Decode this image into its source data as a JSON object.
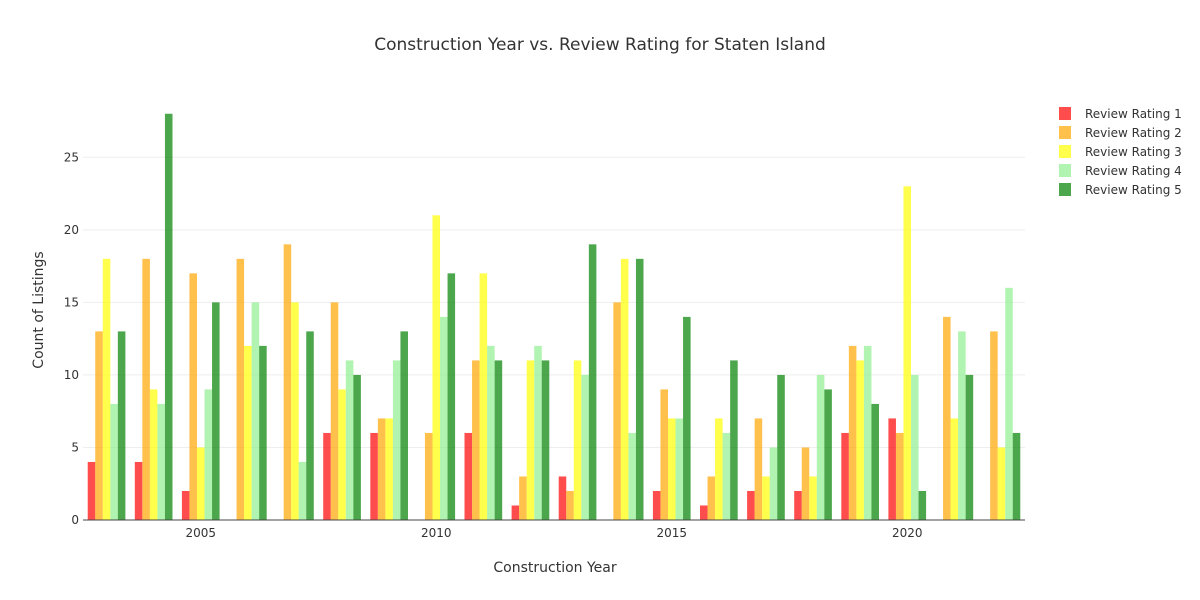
{
  "chart_data": {
    "type": "bar",
    "title": "Construction Year vs. Review Rating for Staten Island",
    "xlabel": "Construction Year",
    "ylabel": "Count of Listings",
    "categories": [
      2003,
      2004,
      2005,
      2006,
      2007,
      2008,
      2009,
      2010,
      2011,
      2012,
      2013,
      2014,
      2015,
      2016,
      2017,
      2018,
      2019,
      2020,
      2021,
      2022
    ],
    "x_ticks": [
      2005,
      2010,
      2015,
      2020
    ],
    "y_ticks": [
      0,
      5,
      10,
      15,
      20,
      25
    ],
    "ylim": [
      0,
      29.5
    ],
    "grid": true,
    "legend_position": "top-right",
    "series": [
      {
        "name": "Review Rating 1",
        "color": "#ff0000",
        "values": [
          4,
          4,
          2,
          0,
          0,
          6,
          6,
          0,
          6,
          1,
          3,
          0,
          2,
          1,
          2,
          2,
          6,
          7,
          0,
          0
        ]
      },
      {
        "name": "Review Rating 2",
        "color": "#ffa500",
        "values": [
          13,
          18,
          17,
          18,
          19,
          15,
          7,
          6,
          11,
          3,
          2,
          15,
          9,
          3,
          7,
          5,
          12,
          6,
          14,
          13
        ]
      },
      {
        "name": "Review Rating 3",
        "color": "#ffff00",
        "values": [
          18,
          9,
          5,
          12,
          15,
          9,
          7,
          21,
          17,
          11,
          11,
          18,
          7,
          7,
          3,
          3,
          11,
          23,
          7,
          5
        ]
      },
      {
        "name": "Review Rating 4",
        "color": "#90ee90",
        "values": [
          8,
          8,
          9,
          15,
          4,
          11,
          11,
          14,
          12,
          12,
          10,
          6,
          7,
          6,
          5,
          10,
          12,
          10,
          13,
          16
        ]
      },
      {
        "name": "Review Rating 5",
        "color": "#008000",
        "values": [
          13,
          28,
          15,
          12,
          13,
          10,
          13,
          17,
          11,
          11,
          19,
          18,
          14,
          11,
          10,
          9,
          8,
          2,
          10,
          6
        ]
      }
    ]
  }
}
